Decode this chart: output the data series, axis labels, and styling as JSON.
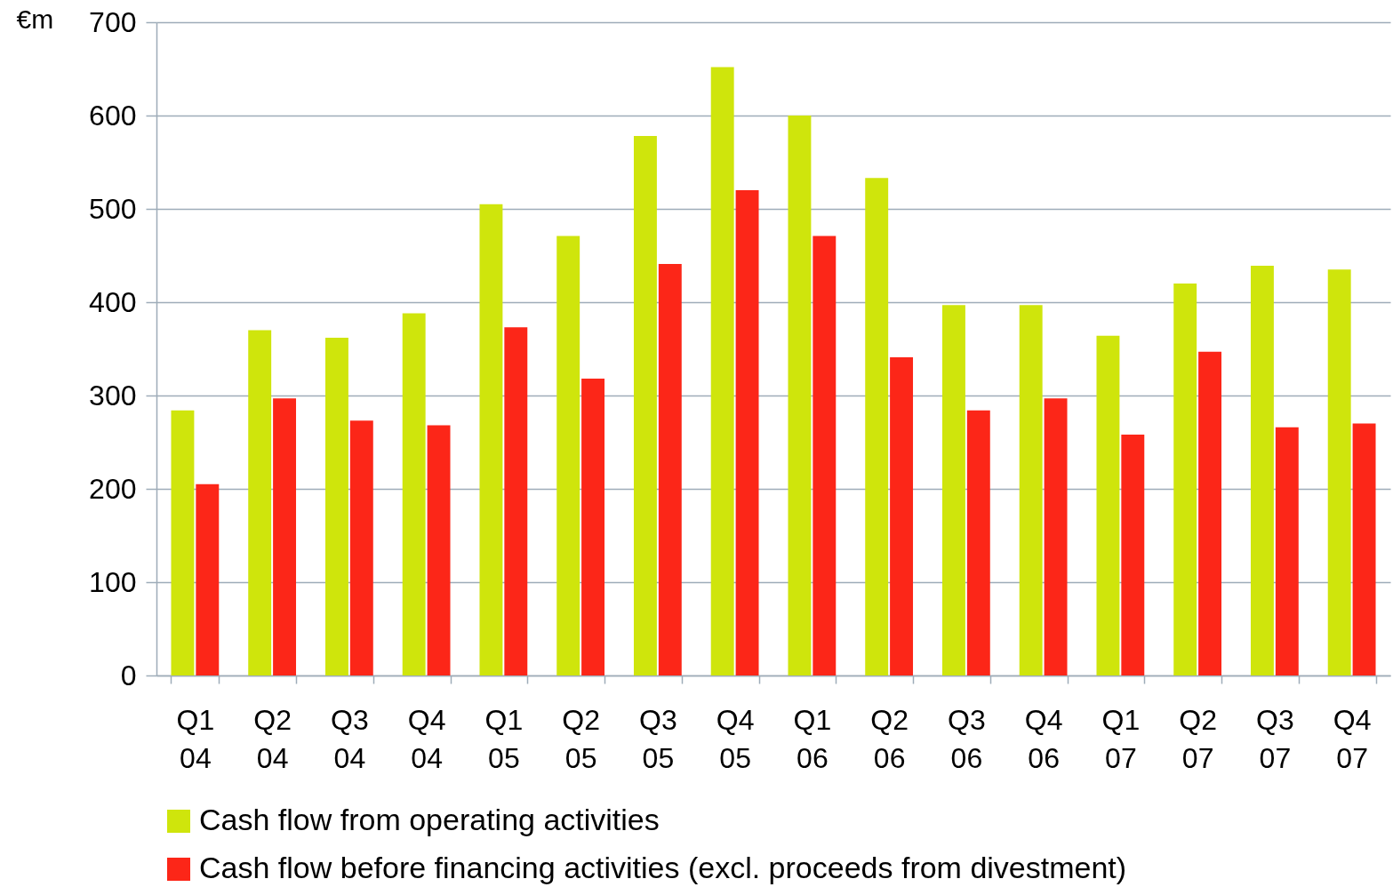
{
  "chart_data": {
    "type": "bar",
    "ylabel": "€m",
    "categories": [
      "Q1\n04",
      "Q2\n04",
      "Q3\n04",
      "Q4\n04",
      "Q1\n05",
      "Q2\n05",
      "Q3\n05",
      "Q4\n05",
      "Q1\n06",
      "Q2\n06",
      "Q3\n06",
      "Q4\n06",
      "Q1\n07",
      "Q2\n07",
      "Q3\n07",
      "Q4\n07"
    ],
    "series": [
      {
        "name": "Cash flow from operating activities",
        "color": "#cfe50c",
        "values": [
          284,
          370,
          362,
          388,
          505,
          471,
          578,
          652,
          600,
          533,
          397,
          397,
          364,
          420,
          439,
          435
        ]
      },
      {
        "name": "Cash flow before financing activities (excl. proceeds from divestment)",
        "color": "#fc2618",
        "values": [
          205,
          297,
          273,
          268,
          373,
          318,
          441,
          520,
          471,
          341,
          284,
          297,
          258,
          347,
          266,
          270
        ]
      }
    ],
    "ylim": [
      0,
      700
    ],
    "yticks": [
      0,
      100,
      200,
      300,
      400,
      500,
      600,
      700
    ],
    "grid": "y",
    "legend": "bottom"
  }
}
